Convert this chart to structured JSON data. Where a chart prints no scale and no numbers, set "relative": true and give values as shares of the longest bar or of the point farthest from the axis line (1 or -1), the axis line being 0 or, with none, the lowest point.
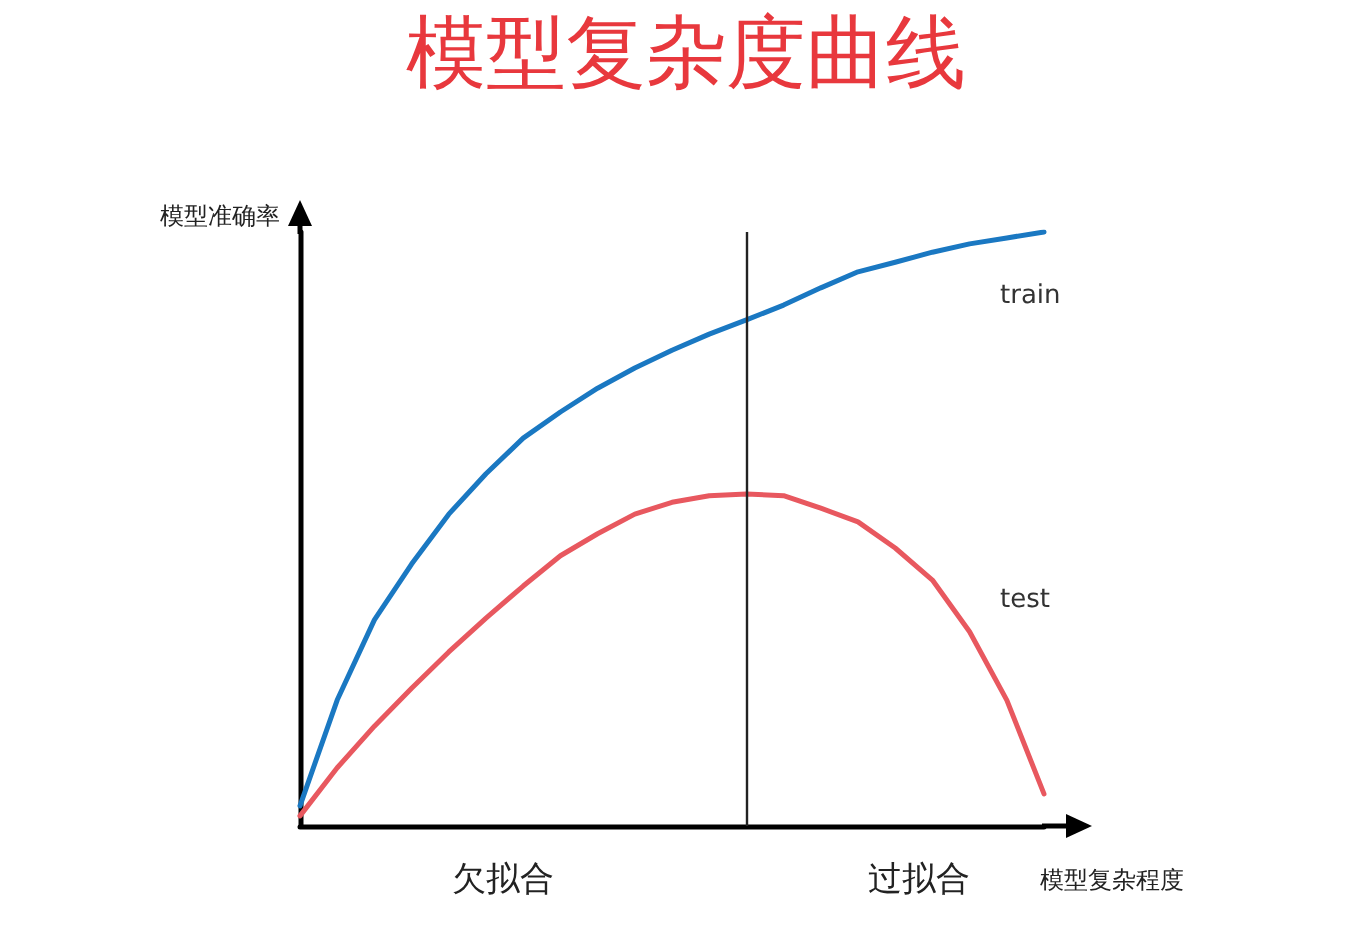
{
  "chart_data": {
    "type": "line",
    "title": "模型复杂度曲线",
    "xlabel": "模型复杂程度",
    "ylabel": "模型准确率",
    "relative": true,
    "marker": "none",
    "categories": [
      null,
      null,
      null,
      null,
      null,
      null,
      null,
      null,
      null,
      null,
      null,
      null,
      null,
      null,
      null,
      null,
      null,
      null,
      null,
      null,
      null
    ],
    "series": [
      {
        "name": "train",
        "color": "#1a78c2",
        "values": [
          0.034,
          0.212,
          0.347,
          0.441,
          0.525,
          0.593,
          0.653,
          0.697,
          0.737,
          0.771,
          0.801,
          0.828,
          0.852,
          0.877,
          0.906,
          0.933,
          0.949,
          0.966,
          0.98,
          0.99,
          1.0
        ]
      },
      {
        "name": "test",
        "color": "#e8585f",
        "values": [
          0.017,
          0.098,
          0.168,
          0.232,
          0.293,
          0.35,
          0.404,
          0.455,
          0.492,
          0.525,
          0.545,
          0.556,
          0.559,
          0.556,
          0.535,
          0.512,
          0.468,
          0.414,
          0.327,
          0.212,
          0.054
        ]
      }
    ],
    "annotations": [
      "欠拟合",
      "过拟合"
    ]
  }
}
